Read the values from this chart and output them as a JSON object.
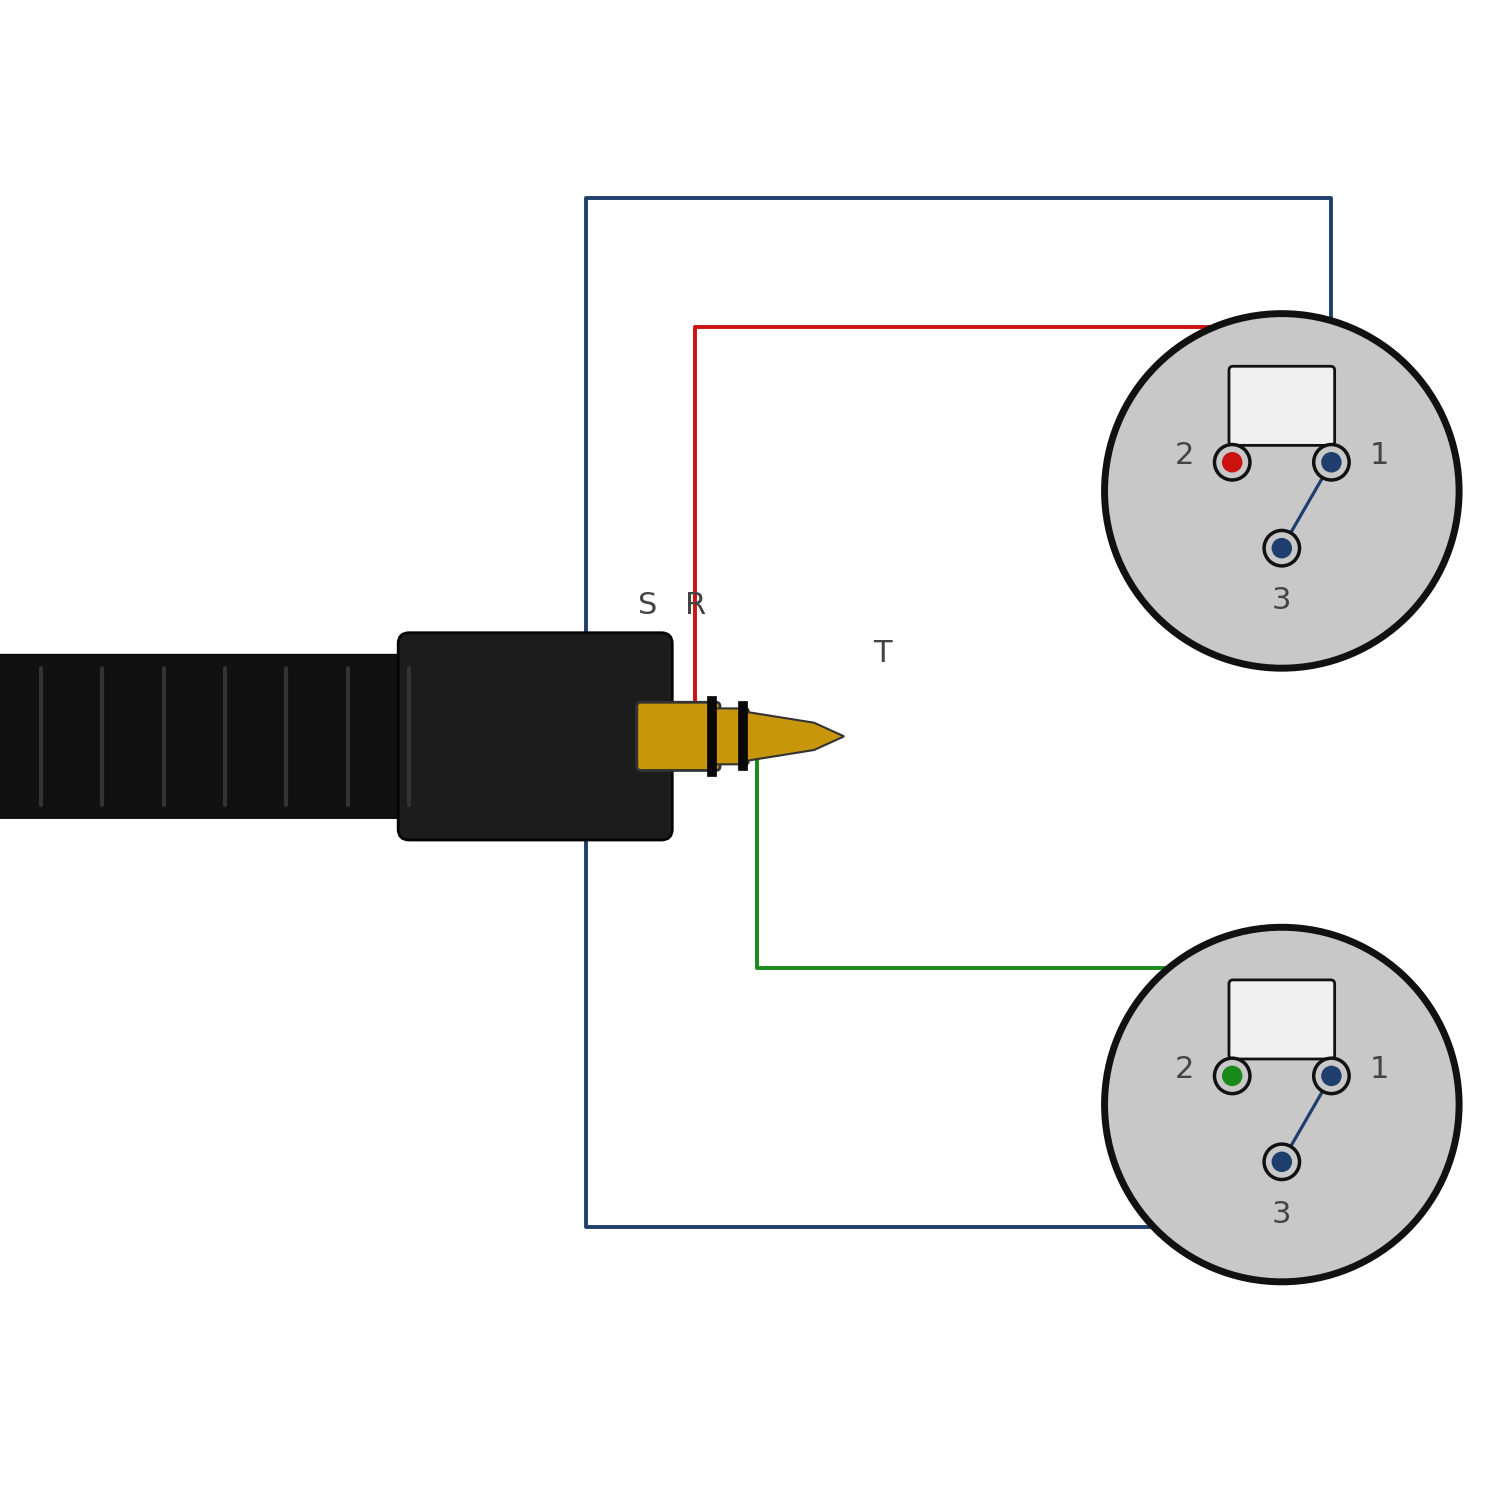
{
  "bg_color": "#ffffff",
  "wire_blue": "#1e3f6e",
  "wire_red": "#cc1111",
  "wire_green": "#1a8a1a",
  "xlr_body_color": "#c0c0c0",
  "xlr_face_color": "#c8c8c8",
  "xlr_outline_color": "#111111",
  "xlr_notch_color": "#f0f0f0",
  "pin_dot_color": "#111111",
  "jack_body_color": "#111111",
  "jack_housing_color": "#1a1a1a",
  "jack_gold_color": "#c8960a",
  "jack_black_ring": "#080808",
  "label_color": "#444444",
  "jack_label_S": "S",
  "jack_label_R": "R",
  "jack_label_T": "T",
  "wire_lw": 2.8,
  "xlr_r": 1.45,
  "figsize": [
    15,
    15
  ],
  "dpi": 100
}
